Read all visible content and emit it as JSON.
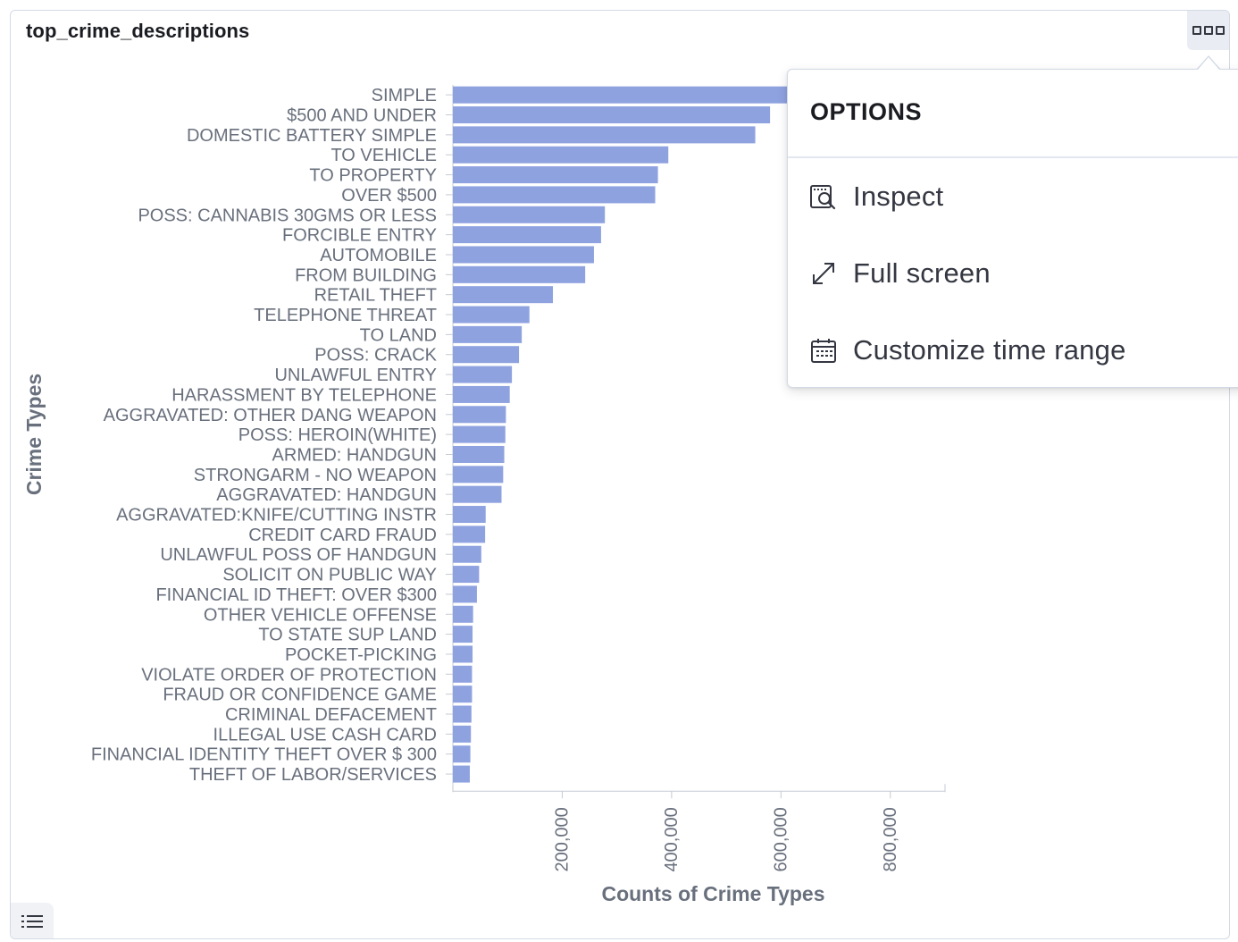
{
  "panel": {
    "title": "top_crime_descriptions",
    "options_icon": "horizontal-dots-icon",
    "legend_toggle_icon": "list-icon"
  },
  "popover": {
    "title": "OPTIONS",
    "items": [
      {
        "label": "Inspect",
        "icon": "inspect-icon"
      },
      {
        "label": "Full screen",
        "icon": "expand-icon"
      },
      {
        "label": "Customize time range",
        "icon": "calendar-icon"
      }
    ]
  },
  "colors": {
    "bar": "#8fa2e0",
    "axis_text": "#69707d",
    "axis_title": "#69707d"
  },
  "chart_data": {
    "type": "bar",
    "orientation": "horizontal",
    "xlabel": "Counts of Crime Types",
    "ylabel": "Crime Types",
    "xlim": [
      0,
      900000
    ],
    "xticks": [
      200000,
      400000,
      600000,
      800000
    ],
    "xtick_labels": [
      "200,000",
      "400,000",
      "600,000",
      "800,000"
    ],
    "grid": false,
    "categories": [
      "SIMPLE",
      "$500 AND UNDER",
      "DOMESTIC BATTERY SIMPLE",
      "TO VEHICLE",
      "TO PROPERTY",
      "OVER $500",
      "POSS: CANNABIS 30GMS OR LESS",
      "FORCIBLE ENTRY",
      "AUTOMOBILE",
      "FROM BUILDING",
      "RETAIL THEFT",
      "TELEPHONE THREAT",
      "TO LAND",
      "POSS: CRACK",
      "UNLAWFUL ENTRY",
      "HARASSMENT BY TELEPHONE",
      "AGGRAVATED: OTHER DANG WEAPON",
      "POSS: HEROIN(WHITE)",
      "ARMED: HANDGUN",
      "STRONGARM - NO WEAPON",
      "AGGRAVATED: HANDGUN",
      "AGGRAVATED:KNIFE/CUTTING INSTR",
      "CREDIT CARD FRAUD",
      "UNLAWFUL POSS OF HANDGUN",
      "SOLICIT ON PUBLIC WAY",
      "FINANCIAL ID THEFT: OVER $300",
      "OTHER VEHICLE OFFENSE",
      "TO STATE SUP LAND",
      "POCKET-PICKING",
      "VIOLATE ORDER OF PROTECTION",
      "FRAUD OR CONFIDENCE GAME",
      "CRIMINAL DEFACEMENT",
      "ILLEGAL USE CASH CARD",
      "FINANCIAL IDENTITY THEFT OVER $ 300",
      "THEFT OF LABOR/SERVICES"
    ],
    "values": [
      820000,
      580000,
      553000,
      394000,
      375000,
      370000,
      278000,
      271000,
      258000,
      242000,
      183000,
      140000,
      126000,
      121000,
      108000,
      104000,
      97000,
      96000,
      94000,
      92000,
      89000,
      60000,
      59000,
      52000,
      48000,
      44000,
      37000,
      36000,
      36000,
      35000,
      35000,
      34000,
      33000,
      32000,
      31000
    ]
  }
}
